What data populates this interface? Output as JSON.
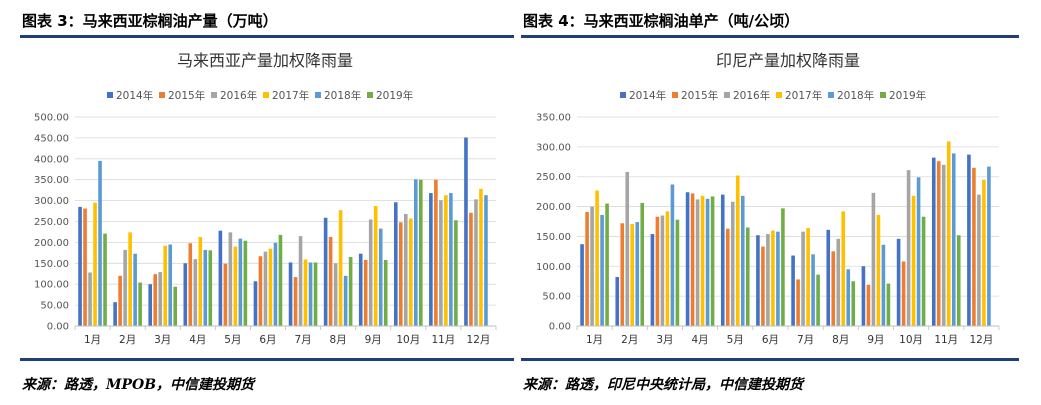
{
  "figures": [
    {
      "fig_title": "图表 3：马来西亚棕榈油产量（万吨）",
      "source": "来源：路透，MPOB，中信建投期货",
      "chart_data": {
        "type": "bar",
        "title": "马来西亚产量加权降雨量",
        "categories": [
          "1月",
          "2月",
          "3月",
          "4月",
          "5月",
          "6月",
          "7月",
          "8月",
          "9月",
          "10月",
          "11月",
          "12月"
        ],
        "ylim": [
          0,
          500
        ],
        "yticks": [
          "0.00",
          "50.00",
          "100.00",
          "150.00",
          "200.00",
          "250.00",
          "300.00",
          "350.00",
          "400.00",
          "450.00",
          "500.00"
        ],
        "ytick_values": [
          0,
          50,
          100,
          150,
          200,
          250,
          300,
          350,
          400,
          450,
          500
        ],
        "grid": true,
        "legend_position": "top",
        "series": [
          {
            "name": "2014年",
            "color": "#4472c4",
            "values": [
              285,
              57,
              100,
              150,
              228,
              107,
              152,
              259,
              173,
              296,
              318,
              451
            ]
          },
          {
            "name": "2015年",
            "color": "#ed7d31",
            "values": [
              281,
              120,
              124,
              198,
              149,
              167,
              117,
              213,
              158,
              248,
              350,
              271
            ]
          },
          {
            "name": "2016年",
            "color": "#a5a5a5",
            "values": [
              128,
              182,
              129,
              160,
              224,
              178,
              215,
              150,
              255,
              268,
              301,
              303
            ]
          },
          {
            "name": "2017年",
            "color": "#ffc000",
            "values": [
              295,
              224,
              192,
              213,
              190,
              185,
              159,
              277,
              287,
              257,
              313,
              328
            ]
          },
          {
            "name": "2018年",
            "color": "#5b9bd5",
            "values": [
              395,
              173,
              195,
              182,
              209,
              199,
              152,
              120,
              233,
              351,
              318,
              313
            ]
          },
          {
            "name": "2019年",
            "color": "#70ad47",
            "values": [
              221,
              104,
              94,
              181,
              204,
              218,
              152,
              165,
              158,
              350,
              253,
              0
            ]
          }
        ]
      }
    },
    {
      "fig_title": "图表 4：马来西亚棕榈油单产（吨/公顷）",
      "source": "来源：路透，印尼中央统计局，中信建投期货",
      "chart_data": {
        "type": "bar",
        "title": "印尼产量加权降雨量",
        "categories": [
          "1月",
          "2月",
          "3月",
          "4月",
          "5月",
          "6月",
          "7月",
          "8月",
          "9月",
          "10月",
          "11月",
          "12月"
        ],
        "ylim": [
          0,
          350
        ],
        "yticks": [
          "0.00",
          "50.00",
          "100.00",
          "150.00",
          "200.00",
          "250.00",
          "300.00",
          "350.00"
        ],
        "ytick_values": [
          0,
          50,
          100,
          150,
          200,
          250,
          300,
          350
        ],
        "grid": true,
        "legend_position": "top",
        "series": [
          {
            "name": "2014年",
            "color": "#4472c4",
            "values": [
              137,
              82,
              154,
              224,
              220,
              152,
              118,
              161,
              100,
              146,
              282,
              287
            ]
          },
          {
            "name": "2015年",
            "color": "#ed7d31",
            "values": [
              191,
              172,
              183,
              222,
              163,
              133,
              78,
              125,
              69,
              108,
              276,
              265
            ]
          },
          {
            "name": "2016年",
            "color": "#a5a5a5",
            "values": [
              200,
              258,
              185,
              212,
              208,
              154,
              158,
              146,
              223,
              261,
              270,
              220
            ]
          },
          {
            "name": "2017年",
            "color": "#ffc000",
            "values": [
              227,
              171,
              192,
              218,
              252,
              160,
              164,
              192,
              186,
              218,
              309,
              245
            ]
          },
          {
            "name": "2018年",
            "color": "#5b9bd5",
            "values": [
              186,
              174,
              237,
              213,
              218,
              158,
              120,
              95,
              136,
              249,
              289,
              267
            ]
          },
          {
            "name": "2019年",
            "color": "#70ad47",
            "values": [
              205,
              206,
              178,
              217,
              165,
              197,
              86,
              75,
              71,
              183,
              152,
              0
            ]
          }
        ]
      }
    }
  ]
}
